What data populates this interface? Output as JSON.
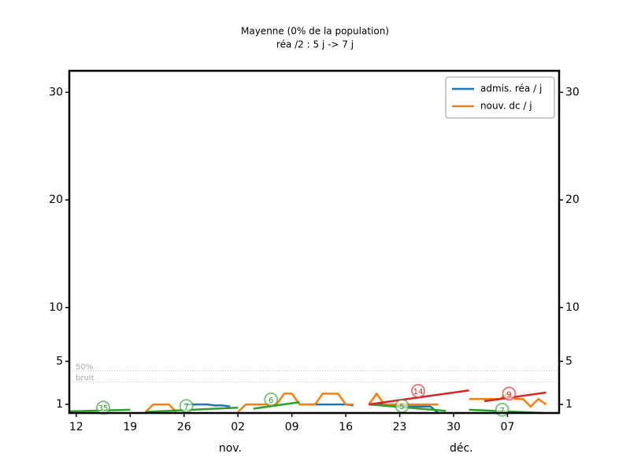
{
  "chart_data": {
    "type": "line",
    "title": "Mayenne (0% de la population)",
    "subtitle": "réa /2 : 5 j -> 7 j",
    "x": [
      0,
      1,
      2,
      3,
      4,
      5,
      6,
      7,
      8,
      9,
      10,
      11,
      12,
      13,
      14,
      15,
      16,
      17,
      18,
      19,
      20,
      21,
      22,
      23,
      24,
      25,
      26,
      27,
      28,
      29,
      30,
      31,
      32,
      33,
      34,
      35,
      36,
      37,
      38,
      39,
      40,
      41,
      42,
      43,
      44,
      45,
      46,
      47,
      48,
      49,
      50,
      51,
      52,
      53,
      54,
      55,
      56,
      57,
      58,
      59,
      60,
      61
    ],
    "series": [
      {
        "name": "admis. réa / j",
        "color": "#1f77b4",
        "values": [
          null,
          null,
          null,
          null,
          null,
          null,
          null,
          null,
          null,
          null,
          null,
          null,
          null,
          null,
          1,
          1,
          1,
          1,
          0.9,
          0.9,
          0.8,
          null,
          null,
          null,
          null,
          null,
          null,
          null,
          null,
          1,
          1,
          1,
          1,
          1,
          1,
          1,
          0.9,
          null,
          1,
          1,
          1,
          0.9,
          0.9,
          0.8,
          0.8,
          0.8,
          0.8,
          0.2,
          null,
          null,
          null,
          null,
          null,
          null,
          null,
          null,
          null,
          null,
          null,
          null,
          null,
          null
        ]
      },
      {
        "name": "nouv. dc / j",
        "color": "#ff7f0e",
        "values": [
          null,
          null,
          null,
          null,
          null,
          null,
          null,
          null,
          null,
          0.3,
          1,
          1,
          1,
          0.3,
          null,
          null,
          null,
          null,
          null,
          null,
          null,
          0.3,
          1,
          1,
          1,
          1,
          1,
          2,
          2,
          1,
          1,
          1,
          2,
          2,
          2,
          1,
          1,
          null,
          1,
          2,
          1,
          1,
          1,
          1,
          1,
          1,
          1,
          1,
          null,
          null,
          null,
          1.5,
          1.5,
          1.5,
          1.5,
          1.5,
          2,
          1.5,
          1.5,
          0.8,
          1.5,
          1
        ]
      }
    ],
    "trends": [
      {
        "color": "#2ca02c",
        "x": [
          -0.9,
          7
        ],
        "values": [
          0.35,
          0.5
        ]
      },
      {
        "color": "#2ca02c",
        "x": [
          9,
          21
        ],
        "values": [
          0.3,
          0.7
        ]
      },
      {
        "color": "#2ca02c",
        "x": [
          23,
          29
        ],
        "values": [
          0.6,
          1.2
        ]
      },
      {
        "color": "#2ca02c",
        "x": [
          38,
          48
        ],
        "values": [
          1.0,
          0.4
        ]
      },
      {
        "color": "#2ca02c",
        "x": [
          51,
          60.7
        ],
        "values": [
          0.5,
          0.2
        ]
      },
      {
        "color": "#d62728",
        "x": [
          38,
          51
        ],
        "values": [
          1.0,
          2.3
        ]
      },
      {
        "color": "#d62728",
        "x": [
          53,
          61
        ],
        "values": [
          1.3,
          2.1
        ]
      }
    ],
    "annotations": [
      {
        "x": 3.5,
        "y": 0.7,
        "label": "35",
        "color": "#2ca02c"
      },
      {
        "x": 14.3,
        "y": 0.85,
        "label": "7",
        "color": "#2ca02c"
      },
      {
        "x": 25.3,
        "y": 1.45,
        "label": "6",
        "color": "#2ca02c"
      },
      {
        "x": 42.3,
        "y": 0.85,
        "label": "5",
        "color": "#2ca02c"
      },
      {
        "x": 44.4,
        "y": 2.25,
        "label": "14",
        "color": "#d62728"
      },
      {
        "x": 55.3,
        "y": 0.5,
        "label": "7",
        "color": "#2ca02c"
      },
      {
        "x": 56.2,
        "y": 2.0,
        "label": "9",
        "color": "#d62728"
      }
    ],
    "noise_lines": [
      {
        "value": 4.1,
        "label": "50%"
      },
      {
        "value": 3.1,
        "label": "bruit"
      }
    ],
    "xlim": [
      -0.9,
      62.7
    ],
    "xticks": [
      {
        "value": 0,
        "label": "12"
      },
      {
        "value": 7,
        "label": "19"
      },
      {
        "value": 14,
        "label": "26"
      },
      {
        "value": 21,
        "label": "02"
      },
      {
        "value": 28,
        "label": "09"
      },
      {
        "value": 35,
        "label": "16"
      },
      {
        "value": 42,
        "label": "23"
      },
      {
        "value": 49,
        "label": "30"
      },
      {
        "value": 56,
        "label": "07"
      }
    ],
    "month_labels": [
      {
        "x": 20,
        "label": "nov."
      },
      {
        "x": 50,
        "label": "déc."
      }
    ],
    "ylim": [
      0.2,
      32
    ],
    "yticks": [
      1,
      5,
      10,
      20,
      30
    ],
    "legend": "upper right"
  }
}
